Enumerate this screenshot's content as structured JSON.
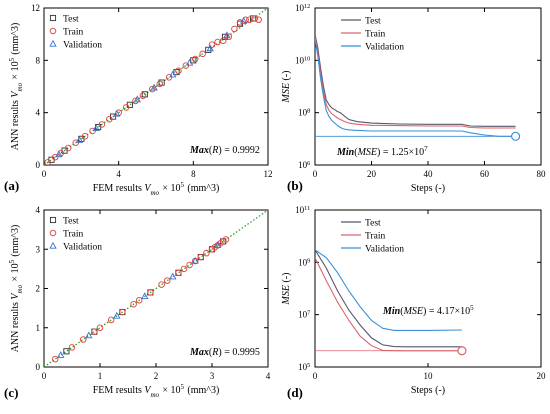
{
  "chart_data": [
    {
      "panel": "(a)",
      "type": "scatter",
      "xlabel": "FEM results V_mo × 10^5 (mm^3)",
      "ylabel": "ANN results V_mo × 10^5 (mm^3)",
      "xlim": [
        0,
        12
      ],
      "ylim": [
        0,
        12
      ],
      "xticks": [
        0,
        4,
        8,
        12
      ],
      "yticks": [
        0,
        4,
        8,
        12
      ],
      "reference_line": {
        "style": "dotted",
        "color": "#2ca02c",
        "from": [
          0,
          0
        ],
        "to": [
          12,
          12
        ]
      },
      "legend": {
        "placement": "top-left",
        "entries": [
          "Test",
          "Train",
          "Validation"
        ]
      },
      "annotation": {
        "bold": "Max",
        "rest": "(R) = 0.9992",
        "placement": "bottom-right"
      },
      "series": [
        {
          "name": "Test",
          "marker": "square",
          "color": "#333333",
          "x": [
            0.4,
            1.1,
            2.0,
            2.9,
            3.7,
            4.6,
            5.4,
            6.3,
            7.1,
            8.0,
            8.8,
            9.7,
            10.5,
            11.2
          ],
          "y": [
            0.4,
            1.1,
            2.0,
            2.9,
            3.7,
            4.6,
            5.4,
            6.3,
            7.1,
            8.0,
            8.8,
            9.8,
            10.8,
            11.2
          ]
        },
        {
          "name": "Train",
          "marker": "circle",
          "color": "#e0403a",
          "x": [
            0.2,
            0.6,
            0.9,
            1.3,
            1.7,
            2.2,
            2.6,
            3.1,
            3.5,
            4.0,
            4.4,
            4.9,
            5.3,
            5.8,
            6.2,
            6.7,
            7.2,
            7.6,
            8.1,
            8.5,
            9.0,
            9.3,
            9.6,
            9.9,
            10.2,
            10.5,
            10.8,
            11.0,
            11.3,
            11.5
          ],
          "y": [
            0.2,
            0.6,
            0.9,
            1.3,
            1.7,
            2.2,
            2.6,
            3.1,
            3.5,
            4.0,
            4.4,
            4.9,
            5.3,
            5.8,
            6.2,
            6.7,
            7.2,
            7.6,
            8.1,
            8.5,
            9.2,
            9.4,
            9.5,
            9.8,
            10.4,
            10.9,
            11.1,
            11.1,
            11.2,
            11.1
          ]
        },
        {
          "name": "Validation",
          "marker": "triangle",
          "color": "#3a6fd8",
          "x": [
            0.8,
            1.9,
            2.8,
            3.9,
            5.0,
            5.9,
            6.9,
            7.8,
            8.9,
            9.8,
            10.7
          ],
          "y": [
            0.8,
            1.9,
            2.8,
            3.9,
            5.0,
            5.9,
            6.9,
            7.8,
            8.9,
            9.9,
            11.0
          ]
        }
      ]
    },
    {
      "panel": "(b)",
      "type": "line",
      "xlabel": "Steps (-)",
      "ylabel": "MSE (-)",
      "yscale": "log",
      "xlim": [
        0,
        80
      ],
      "ylim": [
        1000000,
        1000000000000
      ],
      "xticks": [
        0,
        20,
        40,
        60,
        80
      ],
      "yticks": [
        {
          "value": 1000000,
          "label": "10^6"
        },
        {
          "value": 100000000,
          "label": "10^8"
        },
        {
          "value": 10000000000,
          "label": "10^10"
        },
        {
          "value": 1000000000000,
          "label": "10^12"
        }
      ],
      "best_marker": {
        "x": 71,
        "y": 12500000,
        "color": "#3a8fd8"
      },
      "best_line": {
        "y": 12500000,
        "x_to": 71
      },
      "legend": {
        "placement": "top-right",
        "entries": [
          "Test",
          "Train",
          "Validation"
        ]
      },
      "annotation": {
        "bold": "Min",
        "rest": "(MSE) = 1.25×10^7",
        "placement": "bottom"
      },
      "series": [
        {
          "name": "Test",
          "color": "#56566e",
          "x": [
            0,
            1,
            2,
            3,
            4,
            5,
            6,
            7,
            8,
            9,
            10,
            12,
            15,
            20,
            30,
            40,
            52,
            55,
            60,
            65,
            71
          ],
          "y": [
            100000000000,
            30000000000,
            5000000000,
            1000000000,
            300000000,
            200000000,
            150000000,
            130000000,
            110000000,
            100000000,
            80000000,
            55000000,
            45000000,
            40000000,
            37000000,
            36000000,
            36000000,
            31000000,
            30000000,
            30000000,
            30000000
          ]
        },
        {
          "name": "Train",
          "color": "#d9656a",
          "x": [
            0,
            1,
            2,
            3,
            4,
            5,
            6,
            7,
            8,
            9,
            10,
            12,
            15,
            20,
            30,
            40,
            52,
            55,
            60,
            65,
            71
          ],
          "y": [
            80000000000,
            20000000000,
            3000000000,
            600000000,
            200000000,
            120000000,
            90000000,
            75000000,
            62000000,
            55000000,
            48000000,
            40000000,
            36000000,
            33000000,
            32000000,
            31000000,
            31000000,
            27000000,
            26000000,
            26000000,
            26000000
          ]
        },
        {
          "name": "Validation",
          "color": "#3a8fd8",
          "x": [
            0,
            1,
            2,
            3,
            4,
            5,
            6,
            7,
            8,
            9,
            10,
            12,
            15,
            20,
            30,
            40,
            52,
            55,
            60,
            65,
            71
          ],
          "y": [
            60000000000,
            15000000000,
            2000000000,
            400000000,
            120000000,
            70000000,
            50000000,
            40000000,
            32000000,
            27000000,
            24000000,
            22000000,
            21000000,
            20000000,
            20000000,
            20000000,
            20000000,
            17000000,
            14000000,
            12500000,
            12500000
          ]
        }
      ]
    },
    {
      "panel": "(c)",
      "type": "scatter",
      "xlabel": "FEM results V_mo × 10^5 (mm^3)",
      "ylabel": "ANN results V_mo × 10^5 (mm^3)",
      "xlim": [
        0,
        4
      ],
      "ylim": [
        0,
        4
      ],
      "xticks": [
        0,
        1,
        2,
        3,
        4
      ],
      "yticks": [
        0,
        1,
        2,
        3,
        4
      ],
      "reference_line": {
        "style": "dotted",
        "color": "#2ca02c",
        "from": [
          0,
          0
        ],
        "to": [
          4,
          4
        ]
      },
      "legend": {
        "placement": "top-left",
        "entries": [
          "Test",
          "Train",
          "Validation"
        ]
      },
      "annotation": {
        "bold": "Max",
        "rest": "(R) = 0.9995",
        "placement": "bottom-right"
      },
      "series": [
        {
          "name": "Test",
          "marker": "square",
          "color": "#333333",
          "x": [
            0.4,
            0.9,
            1.4,
            1.9,
            2.4,
            2.8,
            3.0,
            3.2
          ],
          "y": [
            0.4,
            0.9,
            1.4,
            1.9,
            2.4,
            2.8,
            3.0,
            3.2
          ]
        },
        {
          "name": "Train",
          "marker": "circle",
          "color": "#e0403a",
          "x": [
            0.2,
            0.5,
            0.7,
            0.9,
            1.0,
            1.2,
            1.4,
            1.6,
            1.7,
            1.9,
            2.1,
            2.2,
            2.4,
            2.5,
            2.6,
            2.7,
            2.8,
            2.9,
            3.0,
            3.05,
            3.1,
            3.15,
            3.2,
            3.25
          ],
          "y": [
            0.2,
            0.5,
            0.7,
            0.9,
            1.0,
            1.2,
            1.4,
            1.6,
            1.7,
            1.9,
            2.1,
            2.2,
            2.4,
            2.5,
            2.6,
            2.7,
            2.8,
            2.9,
            3.0,
            3.05,
            3.1,
            3.15,
            3.2,
            3.25
          ]
        },
        {
          "name": "Validation",
          "marker": "triangle",
          "color": "#3a6fd8",
          "x": [
            0.3,
            0.8,
            1.3,
            1.8,
            2.3,
            2.7,
            3.1
          ],
          "y": [
            0.3,
            0.8,
            1.3,
            1.8,
            2.3,
            2.7,
            3.1
          ]
        }
      ]
    },
    {
      "panel": "(d)",
      "type": "line",
      "xlabel": "Steps (-)",
      "ylabel": "MSE (-)",
      "yscale": "log",
      "xlim": [
        0,
        20
      ],
      "ylim": [
        100000,
        100000000000
      ],
      "xticks": [
        0,
        10,
        20
      ],
      "yticks": [
        {
          "value": 100000,
          "label": "10^5"
        },
        {
          "value": 10000000,
          "label": "10^7"
        },
        {
          "value": 1000000000,
          "label": "10^9"
        },
        {
          "value": 100000000000,
          "label": "10^11"
        }
      ],
      "best_marker": {
        "x": 13,
        "y": 417000,
        "color": "#d9656a"
      },
      "best_line": {
        "y": 417000,
        "x_to": 13
      },
      "legend": {
        "placement": "top-right",
        "entries": [
          "Test",
          "Train",
          "Validation"
        ]
      },
      "annotation": {
        "bold": "Min",
        "rest": "(MSE) = 4.17×10^5",
        "placement": "center"
      },
      "series": [
        {
          "name": "Test",
          "color": "#56566e",
          "x": [
            0,
            1,
            2,
            3,
            4,
            5,
            6,
            7,
            8,
            10,
            13
          ],
          "y": [
            3000000000,
            600000000,
            80000000,
            15000000,
            4000000,
            1300000,
            700000,
            600000,
            590000,
            590000,
            590000
          ]
        },
        {
          "name": "Train",
          "color": "#d9656a",
          "x": [
            0,
            1,
            2,
            3,
            4,
            5,
            6,
            7,
            8,
            10,
            13
          ],
          "y": [
            1500000000,
            200000000,
            30000000,
            6000000,
            1500000,
            650000,
            430000,
            420000,
            417000,
            417000,
            417000
          ]
        },
        {
          "name": "Validation",
          "color": "#3a8fd8",
          "x": [
            0,
            1,
            2,
            3,
            4,
            5,
            6,
            7,
            8,
            10,
            13
          ],
          "y": [
            3000000000,
            1500000000,
            400000000,
            80000000,
            20000000,
            6000000,
            3000000,
            2500000,
            2500000,
            2500000,
            2600000
          ]
        }
      ]
    }
  ]
}
